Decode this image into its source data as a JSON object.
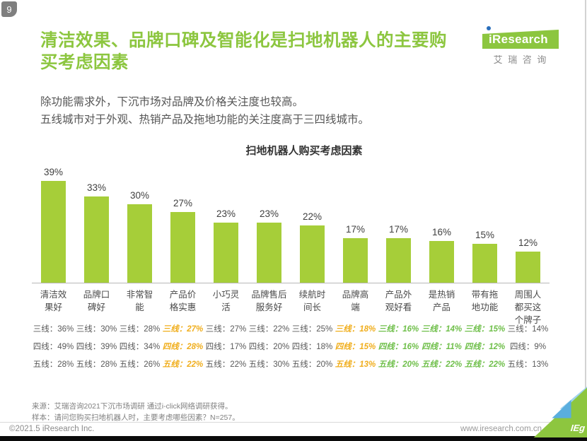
{
  "page": {
    "number": "9"
  },
  "header": {
    "title": "清洁效果、品牌口碑及智能化是扫地机器人的主要购买考虑因素",
    "subtitle_lines": [
      "除功能需求外，下沉市场对品牌及价格关注度也较高。",
      "五线城市对于外观、热销产品及拖地功能的关注度高于三四线城市。"
    ],
    "logo": {
      "brand": "iResearch",
      "brand_cn": "艾 瑞 咨 询"
    }
  },
  "chart_data": {
    "type": "bar",
    "title": "扫地机器人购买考虑因素",
    "categories": [
      "清洁效果好",
      "品牌口碑好",
      "非常智能",
      "产品价格实惠",
      "小巧灵活",
      "品牌售后服务好",
      "续航时间长",
      "品牌高端",
      "产品外观好看",
      "是热销产品",
      "带有拖地功能",
      "周围人都买这个牌子"
    ],
    "category_display": [
      "清洁效\n果好",
      "品牌口\n碑好",
      "非常智\n能",
      "产品价\n格实惠",
      "小巧灵\n活",
      "品牌售后\n服务好",
      "续航时\n间长",
      "品牌高\n端",
      "产品外\n观好看",
      "是热销\n产品",
      "带有拖\n地功能",
      "周围人\n都买这\n个牌子"
    ],
    "values": [
      39,
      33,
      30,
      27,
      23,
      23,
      22,
      17,
      17,
      16,
      15,
      12
    ],
    "value_suffix": "%",
    "ylim": [
      0,
      40
    ],
    "grid": false,
    "legend_position": "none",
    "bar_color": "#a6ce39",
    "series": [
      {
        "name": "三线",
        "values": [
          36,
          30,
          28,
          27,
          27,
          22,
          25,
          18,
          16,
          14,
          15,
          14
        ]
      },
      {
        "name": "四线",
        "values": [
          49,
          39,
          34,
          28,
          17,
          20,
          18,
          15,
          16,
          11,
          12,
          9
        ]
      },
      {
        "name": "五线",
        "values": [
          28,
          28,
          26,
          22,
          22,
          30,
          20,
          13,
          20,
          22,
          22,
          13
        ]
      }
    ],
    "column_highlights": [
      "gray",
      "gray",
      "gray",
      "orange",
      "gray",
      "gray",
      "gray",
      "orange",
      "green",
      "green",
      "green",
      "gray"
    ],
    "highlight_colors": {
      "gray": "#595959",
      "orange": "#f0ae1d",
      "green": "#6fbf4a"
    }
  },
  "footnotes": [
    "来源：艾瑞咨询2021下沉市场调研 通过i-click网络调研获得。",
    "样本：请问您购买扫地机器人时，主要考虑哪些因素？N=257。"
  ],
  "footer": {
    "copyright": "©2021.5 iResearch Inc.",
    "website": "www.iresearch.com.cn",
    "corner_watermark": "IEg"
  }
}
